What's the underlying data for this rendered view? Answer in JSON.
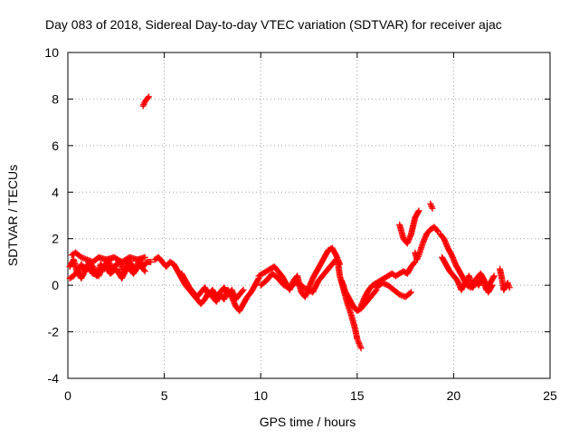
{
  "chart_data": {
    "type": "scatter",
    "title": "Day 083 of 2018, Sidereal Day-to-day VTEC variation (SDTVAR) for receiver ajac",
    "xlabel": "GPS time / hours",
    "ylabel": "SDTVAR / TECUs",
    "xlim": [
      0,
      25
    ],
    "ylim": [
      -4,
      10
    ],
    "xticks": [
      0,
      5,
      10,
      15,
      20,
      25
    ],
    "yticks": [
      -4,
      -2,
      0,
      2,
      4,
      6,
      8,
      10
    ],
    "xtick_labels": [
      "0",
      "5",
      "10",
      "15",
      "20",
      "25"
    ],
    "ytick_labels": [
      "-4",
      "-2",
      "0",
      "2",
      "4",
      "6",
      "8",
      "10"
    ],
    "grid": true,
    "marker": "+",
    "series": [
      {
        "name": "SDTVAR",
        "color": "#ff0000",
        "segments": [
          {
            "x": [
              0.1,
              0.3,
              0.5,
              0.7,
              0.9,
              1.1,
              1.3,
              1.5,
              1.7,
              1.9,
              2.1,
              2.3,
              2.5,
              2.7,
              2.9,
              3.1,
              3.3,
              3.5,
              3.7,
              3.9,
              4.1,
              4.3
            ],
            "y": [
              0.8,
              1.1,
              0.5,
              0.9,
              0.6,
              1.0,
              0.8,
              0.4,
              0.9,
              0.7,
              1.1,
              0.6,
              0.9,
              1.0,
              0.5,
              1.1,
              0.9,
              0.6,
              1.1,
              0.8,
              1.0,
              1.0
            ]
          },
          {
            "x": [
              0.1,
              0.3,
              0.5,
              0.7,
              1.0,
              1.3,
              1.6,
              1.9,
              2.2,
              2.5,
              2.8,
              3.1,
              3.4,
              3.7,
              4.0
            ],
            "y": [
              0.3,
              0.4,
              0.6,
              0.3,
              0.8,
              0.5,
              0.4,
              0.9,
              0.5,
              0.7,
              0.3,
              0.8,
              0.5,
              0.9,
              0.6
            ]
          },
          {
            "x": [
              0.2,
              0.4,
              0.7,
              1.0,
              1.3,
              1.6,
              2.0,
              2.4,
              2.8,
              3.2,
              3.6,
              4.0
            ],
            "y": [
              1.3,
              1.4,
              1.2,
              1.1,
              1.0,
              1.2,
              1.1,
              1.2,
              1.0,
              1.2,
              1.1,
              1.2
            ]
          },
          {
            "x": [
              3.9,
              4.0,
              4.1,
              4.2
            ],
            "y": [
              7.7,
              7.9,
              8.0,
              8.1
            ]
          },
          {
            "x": [
              4.5,
              4.7,
              4.9,
              5.1,
              5.3,
              5.5,
              5.7,
              5.9,
              6.1,
              6.3,
              6.5,
              6.7,
              6.9,
              7.1,
              7.3,
              7.5,
              7.7,
              7.9,
              8.1,
              8.3,
              8.5,
              8.7,
              8.9,
              9.1,
              9.3,
              9.5,
              9.7,
              9.9
            ],
            "y": [
              1.1,
              1.2,
              1.0,
              0.8,
              1.0,
              0.9,
              0.6,
              0.3,
              0.0,
              -0.2,
              -0.4,
              -0.6,
              -0.8,
              -0.6,
              -0.3,
              -0.5,
              -0.7,
              -0.4,
              -0.6,
              -0.2,
              -0.5,
              -0.9,
              -1.1,
              -0.8,
              -0.5,
              -0.3,
              0.0,
              0.3
            ]
          },
          {
            "x": [
              5.9,
              6.1,
              6.3,
              6.5,
              6.7,
              6.9,
              7.1,
              7.3,
              7.5,
              7.7,
              7.9,
              8.1,
              8.3,
              8.5,
              8.7,
              8.9,
              9.1
            ],
            "y": [
              0.5,
              0.2,
              -0.1,
              -0.3,
              -0.5,
              -0.3,
              -0.1,
              -0.4,
              -0.2,
              -0.5,
              -0.3,
              -0.1,
              -0.4,
              -0.2,
              -0.6,
              -0.4,
              -0.2
            ]
          },
          {
            "x": [
              9.9,
              10.1,
              10.3,
              10.5,
              10.7,
              10.9,
              11.1,
              11.3,
              11.5,
              11.7,
              11.9,
              12.1,
              12.3,
              12.5,
              12.7,
              12.9,
              13.1,
              13.3,
              13.5,
              13.7,
              13.9,
              14.1
            ],
            "y": [
              0.4,
              0.5,
              0.6,
              0.7,
              0.8,
              0.6,
              0.4,
              0.1,
              -0.2,
              0.2,
              0.4,
              -0.3,
              -0.5,
              -0.1,
              0.3,
              0.6,
              0.9,
              1.2,
              1.5,
              1.6,
              1.3,
              0.9
            ]
          },
          {
            "x": [
              10.0,
              10.3,
              10.6,
              10.9,
              11.2,
              11.5,
              11.8,
              12.1,
              12.4,
              12.7,
              13.0,
              13.3,
              13.6,
              13.9
            ],
            "y": [
              0.0,
              0.2,
              0.5,
              0.3,
              0.0,
              -0.1,
              0.1,
              0.0,
              -0.2,
              -0.3,
              0.2,
              0.5,
              0.8,
              1.1
            ]
          },
          {
            "x": [
              14.0,
              14.1,
              14.3,
              14.5,
              14.7,
              14.9,
              15.0,
              15.1,
              15.2
            ],
            "y": [
              1.0,
              0.4,
              -0.2,
              -0.8,
              -1.3,
              -1.9,
              -2.3,
              -2.5,
              -2.7
            ]
          },
          {
            "x": [
              14.2,
              14.4,
              14.6,
              14.8,
              15.0,
              15.2,
              15.4,
              15.6,
              15.8,
              16.0
            ],
            "y": [
              0.2,
              -0.3,
              -0.6,
              -0.9,
              -1.1,
              -1.0,
              -0.8,
              -0.6,
              -0.4,
              -0.2
            ]
          },
          {
            "x": [
              15.2,
              15.4,
              15.6,
              15.8,
              16.0,
              16.2,
              16.4,
              16.6,
              16.8,
              17.0,
              17.2,
              17.4,
              17.6,
              17.8,
              18.0
            ],
            "y": [
              -0.9,
              -0.5,
              -0.2,
              0.0,
              0.1,
              0.2,
              0.3,
              0.4,
              0.5,
              0.4,
              0.5,
              0.6,
              0.5,
              0.8,
              1.0
            ]
          },
          {
            "x": [
              16.0,
              16.3,
              16.6,
              16.9,
              17.2,
              17.5,
              17.8
            ],
            "y": [
              -0.1,
              0.1,
              0.0,
              -0.2,
              -0.4,
              -0.5,
              -0.3
            ]
          },
          {
            "x": [
              17.2,
              17.4,
              17.6,
              17.8,
              18.0,
              18.2
            ],
            "y": [
              2.6,
              2.0,
              1.8,
              2.2,
              2.9,
              3.2
            ]
          },
          {
            "x": [
              18.0,
              18.1,
              18.2,
              18.4,
              18.6,
              18.8,
              19.0,
              19.2
            ],
            "y": [
              1.4,
              1.1,
              1.3,
              1.8,
              2.2,
              2.4,
              2.5,
              2.3
            ]
          },
          {
            "x": [
              18.8,
              18.9
            ],
            "y": [
              3.5,
              3.3
            ]
          },
          {
            "x": [
              19.3,
              19.5,
              19.7,
              19.9,
              20.1,
              20.3,
              20.5,
              20.7,
              20.9,
              21.1,
              21.3,
              21.5,
              21.7,
              21.9,
              22.1
            ],
            "y": [
              2.2,
              2.0,
              1.6,
              1.3,
              0.9,
              0.6,
              0.3,
              0.0,
              -0.1,
              0.2,
              0.0,
              0.3,
              -0.2,
              0.1,
              0.4
            ]
          },
          {
            "x": [
              19.4,
              19.6,
              19.8,
              20.0,
              20.2,
              20.4,
              20.6,
              20.8,
              21.0,
              21.2,
              21.4,
              21.6,
              21.8,
              22.0
            ],
            "y": [
              1.2,
              0.9,
              0.6,
              0.4,
              0.2,
              -0.2,
              0.1,
              0.4,
              -0.1,
              0.3,
              0.5,
              0.2,
              -0.3,
              0.0
            ]
          },
          {
            "x": [
              22.4,
              22.5,
              22.6,
              22.8,
              22.9
            ],
            "y": [
              0.7,
              0.3,
              -0.2,
              0.1,
              -0.1
            ]
          }
        ]
      }
    ]
  }
}
